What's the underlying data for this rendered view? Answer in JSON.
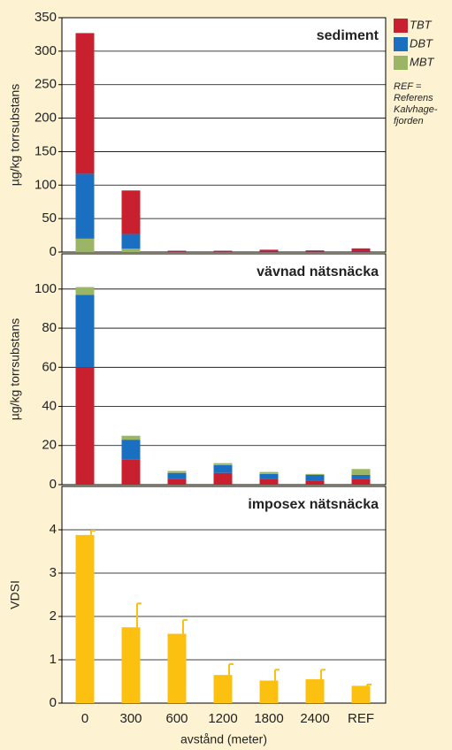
{
  "chart_data": [
    {
      "type": "stacked_bar",
      "title": "sediment",
      "ylabel": "µg/kg torrsubstans",
      "ylim": [
        0,
        350
      ],
      "yticks": [
        0,
        50,
        100,
        150,
        200,
        250,
        300,
        350
      ],
      "grid": true,
      "series": [
        {
          "name": "TBT",
          "color": "#c8202f",
          "values": [
            210,
            65,
            1.5,
            1.5,
            3,
            2,
            5
          ]
        },
        {
          "name": "DBT",
          "color": "#1a6fc1",
          "values": [
            97,
            22,
            0.5,
            0.5,
            0.5,
            0.5,
            0.5
          ]
        },
        {
          "name": "MBT",
          "color": "#9ab565",
          "values": [
            20,
            5,
            0,
            0,
            0,
            0,
            0
          ]
        }
      ],
      "note": [
        "REF =",
        "Referens",
        "Kalvhage-",
        "fjorden"
      ]
    },
    {
      "type": "stacked_bar",
      "title": "vävnad nätsnäcka",
      "ylabel": "µg/kg torrsubstans",
      "ylim": [
        0,
        118
      ],
      "yticks": [
        0,
        20,
        40,
        60,
        80,
        100
      ],
      "grid": true,
      "series": [
        {
          "color": "#c8202f",
          "values": [
            60,
            13,
            3,
            6,
            3,
            2,
            3
          ]
        },
        {
          "color": "#1a6fc1",
          "values": [
            37,
            10,
            3,
            4,
            2.5,
            3,
            2
          ]
        },
        {
          "color": "#9ab565",
          "values": [
            4,
            2,
            1,
            1,
            1,
            0.5,
            3
          ]
        }
      ]
    },
    {
      "type": "bar",
      "title": "imposex nätsnäcka",
      "ylabel": "VDSI",
      "xlabel": "avstånd (meter)",
      "categories": [
        "0",
        "300",
        "600",
        "1200",
        "1800",
        "2400",
        "REF"
      ],
      "values": [
        3.88,
        1.75,
        1.6,
        0.65,
        0.52,
        0.55,
        0.4
      ],
      "errors": [
        0.1,
        0.55,
        0.32,
        0.25,
        0.25,
        0.22,
        0.03
      ],
      "color": "#fcc010",
      "ylim": [
        0,
        5
      ],
      "yticks": [
        0,
        1,
        2,
        3,
        4
      ],
      "grid": true
    }
  ]
}
